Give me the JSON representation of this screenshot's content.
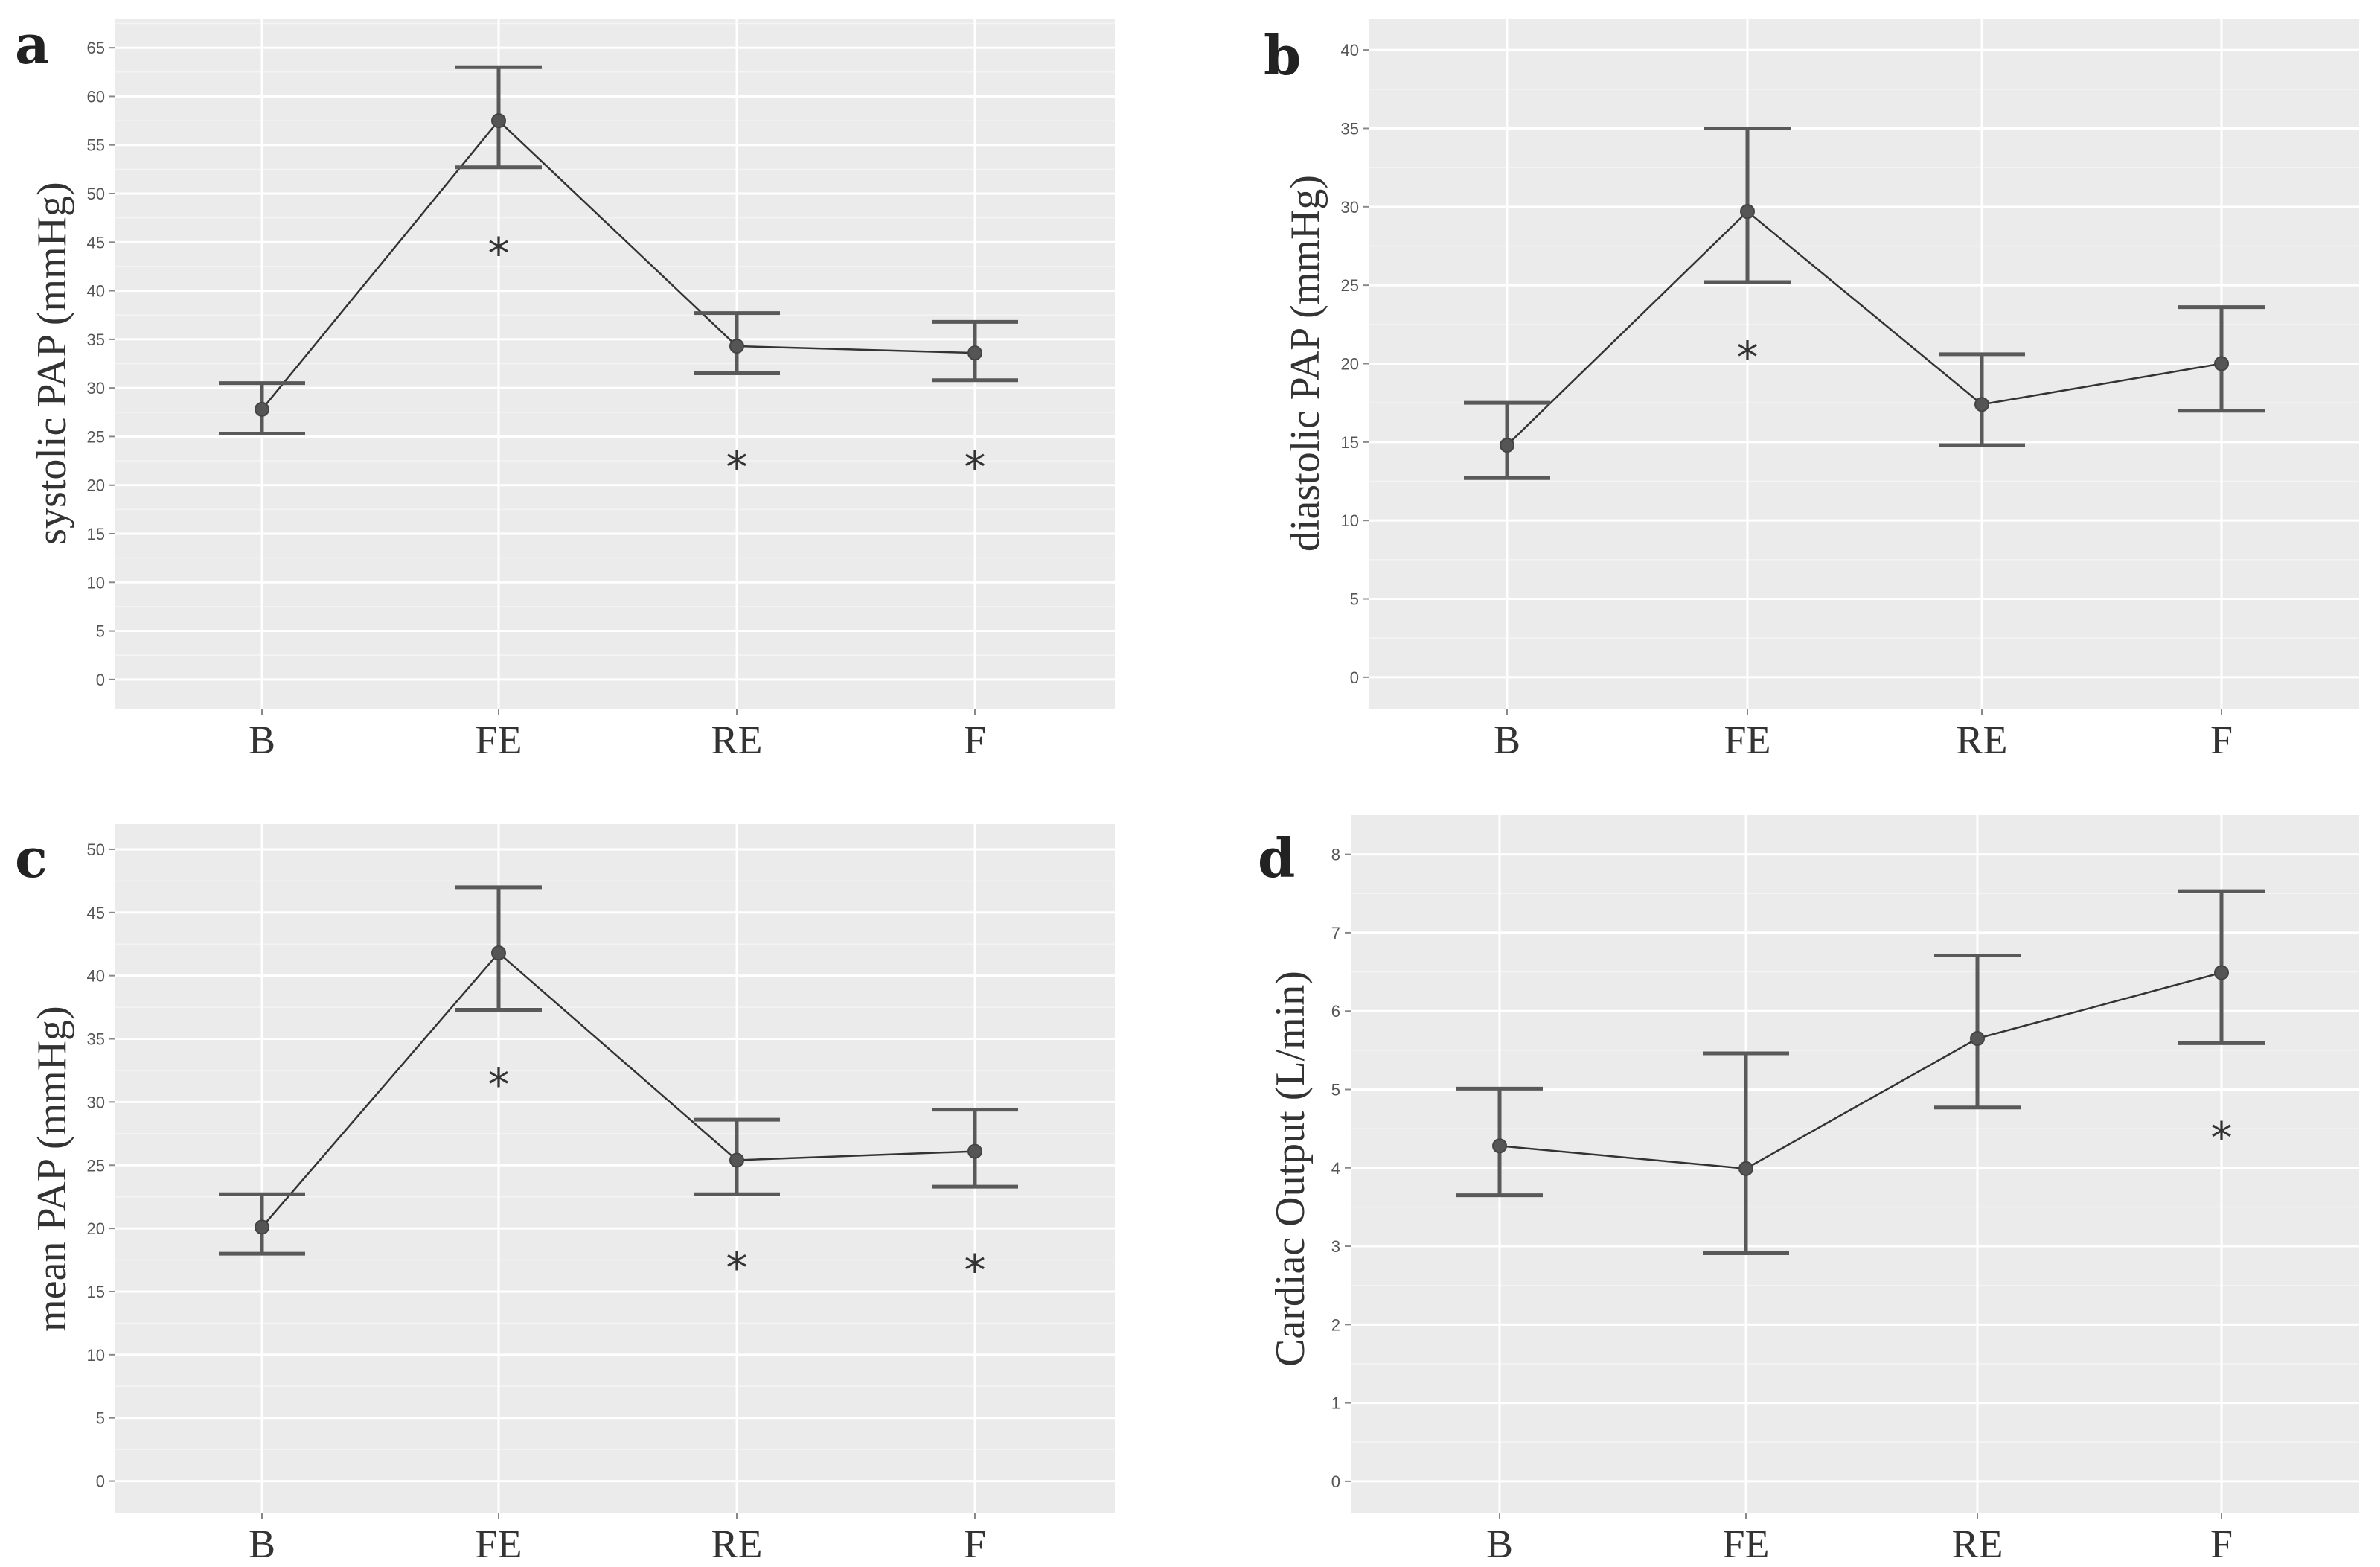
{
  "chart_data": [
    {
      "type": "line",
      "panel_label": "a",
      "ylabel": "systolic PAP (mmHg)",
      "categories": [
        "B",
        "FE",
        "RE",
        "F"
      ],
      "ylim": [
        -3,
        68
      ],
      "yticks": [
        0,
        5,
        10,
        15,
        20,
        25,
        30,
        35,
        40,
        45,
        50,
        55,
        60,
        65
      ],
      "values": [
        27.8,
        57.5,
        34.3,
        33.6
      ],
      "lower": [
        25.3,
        52.7,
        31.5,
        30.8
      ],
      "upper": [
        30.5,
        63.0,
        37.7,
        36.8
      ],
      "annotations": [
        {
          "category": "FE",
          "text": "*",
          "y": 44
        },
        {
          "category": "RE",
          "text": "*",
          "y": 22
        },
        {
          "category": "F",
          "text": "*",
          "y": 22
        }
      ]
    },
    {
      "type": "line",
      "panel_label": "b",
      "ylabel": "diastolic PAP (mmHg)",
      "categories": [
        "B",
        "FE",
        "RE",
        "F"
      ],
      "ylim": [
        -2,
        42
      ],
      "yticks": [
        0,
        5,
        10,
        15,
        20,
        25,
        30,
        35,
        40
      ],
      "values": [
        14.8,
        29.7,
        17.4,
        20.0
      ],
      "lower": [
        12.7,
        25.2,
        14.8,
        17.0
      ],
      "upper": [
        17.5,
        35.0,
        20.6,
        23.6
      ],
      "annotations": [
        {
          "category": "FE",
          "text": "*",
          "y": 20.5
        }
      ]
    },
    {
      "type": "line",
      "panel_label": "c",
      "ylabel": "mean PAP (mmHg)",
      "categories": [
        "B",
        "FE",
        "RE",
        "F"
      ],
      "ylim": [
        -2.5,
        52
      ],
      "yticks": [
        0,
        5,
        10,
        15,
        20,
        25,
        30,
        35,
        40,
        45,
        50
      ],
      "values": [
        20.1,
        41.8,
        25.4,
        26.1
      ],
      "lower": [
        18.0,
        37.3,
        22.7,
        23.3
      ],
      "upper": [
        22.7,
        47.0,
        28.6,
        29.4
      ],
      "annotations": [
        {
          "category": "FE",
          "text": "*",
          "y": 31.5
        },
        {
          "category": "RE",
          "text": "*",
          "y": 17
        },
        {
          "category": "F",
          "text": "*",
          "y": 16.8
        }
      ]
    },
    {
      "type": "line",
      "panel_label": "d",
      "ylabel": "Cardiac Output (L/min)",
      "categories": [
        "B",
        "FE",
        "RE",
        "F"
      ],
      "ylim": [
        -0.4,
        8.5
      ],
      "yticks": [
        0,
        1,
        2,
        3,
        4,
        5,
        6,
        7,
        8
      ],
      "values": [
        4.28,
        3.99,
        5.65,
        6.49
      ],
      "lower": [
        3.65,
        2.91,
        4.77,
        5.59
      ],
      "upper": [
        5.01,
        5.46,
        6.71,
        7.53
      ],
      "annotations": [
        {
          "category": "F",
          "text": "*",
          "y": 4.4
        }
      ]
    }
  ]
}
